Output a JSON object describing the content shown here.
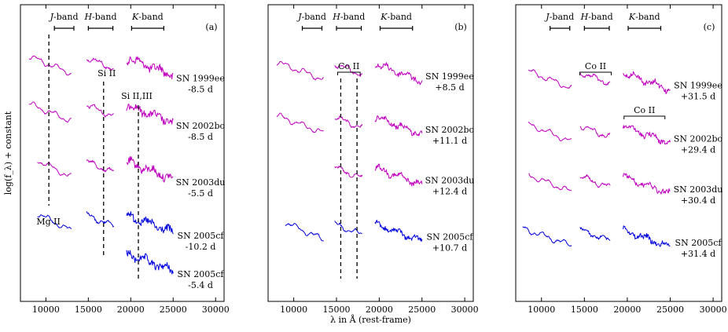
{
  "y_axis_label": "log(f_λ) + constant",
  "x_axis_label": "λ in Å (rest-frame)",
  "colors": {
    "optical": "#bf00bf",
    "blue": "#0000dd",
    "axis": "#000000"
  },
  "chart_data": [
    {
      "type": "line",
      "panel_label": "(a)",
      "xlim": [
        7000,
        31000
      ],
      "xticks": [
        10000,
        15000,
        20000,
        25000,
        30000
      ],
      "bands": [
        {
          "label": "J-band",
          "range": [
            11000,
            13300
          ]
        },
        {
          "label": "H-band",
          "range": [
            15000,
            17900
          ]
        },
        {
          "label": "K-band",
          "range": [
            20100,
            23900
          ]
        }
      ],
      "line_markers": [
        {
          "label": "",
          "x": 10350
        },
        {
          "label": "Si II",
          "x": 16800
        },
        {
          "label": "Si II,III",
          "x": 20900
        },
        {
          "label": "Mg II",
          "x": 10300
        }
      ],
      "series": [
        {
          "name": "SN 1999ee",
          "phase": "-8.5 d",
          "color": "magenta",
          "segments": [
            [
              8000,
              13000
            ],
            [
              14800,
              18000
            ],
            [
              19500,
              25000
            ]
          ],
          "level": 0.2
        },
        {
          "name": "SN 2002bo",
          "phase": "-8.5 d",
          "color": "magenta",
          "segments": [
            [
              8000,
              13000
            ],
            [
              14800,
              18000
            ],
            [
              19500,
              25000
            ]
          ],
          "level": 0.36
        },
        {
          "name": "SN 2003du",
          "phase": "-5.5 d",
          "color": "magenta",
          "segments": [
            [
              9000,
              13000
            ],
            [
              14800,
              18000
            ],
            [
              19500,
              25000
            ]
          ],
          "level": 0.55
        },
        {
          "name": "SN 2005cf",
          "phase": "-10.2 d",
          "color": "blue",
          "segments": [
            [
              9000,
              13000
            ],
            [
              14800,
              18000
            ],
            [
              19500,
              25000
            ]
          ],
          "level": 0.73
        },
        {
          "name": "SN 2005cf",
          "phase": "-5.4 d",
          "color": "blue",
          "segments": [
            [
              19500,
              25000
            ]
          ],
          "level": 0.86
        }
      ]
    },
    {
      "type": "line",
      "panel_label": "(b)",
      "xlim": [
        7000,
        31000
      ],
      "xticks": [
        10000,
        15000,
        20000,
        25000,
        30000
      ],
      "bands": [
        {
          "label": "J-band",
          "range": [
            11000,
            13300
          ]
        },
        {
          "label": "H-band",
          "range": [
            15000,
            17900
          ]
        },
        {
          "label": "K-band",
          "range": [
            20100,
            23900
          ]
        }
      ],
      "line_markers": [
        {
          "label": "Co II",
          "x": 15500
        },
        {
          "label": "",
          "x": 17400
        }
      ],
      "series": [
        {
          "name": "SN 1999ee",
          "phase": "+8.5 d",
          "color": "magenta",
          "segments": [
            [
              8000,
              13500
            ],
            [
              14800,
              18000
            ],
            [
              19500,
              25000
            ]
          ],
          "level": 0.22
        },
        {
          "name": "SN 2002bo",
          "phase": "+11.1 d",
          "color": "magenta",
          "segments": [
            [
              8000,
              13500
            ],
            [
              14800,
              18000
            ],
            [
              19500,
              25000
            ]
          ],
          "level": 0.4
        },
        {
          "name": "SN 2003du",
          "phase": "+12.4 d",
          "color": "magenta",
          "segments": [
            [
              14800,
              18000
            ],
            [
              19500,
              25000
            ]
          ],
          "level": 0.57
        },
        {
          "name": "SN 2005cf",
          "phase": "+10.7 d",
          "color": "blue",
          "segments": [
            [
              9000,
              13500
            ],
            [
              14800,
              18000
            ],
            [
              19500,
              25000
            ]
          ],
          "level": 0.76
        }
      ]
    },
    {
      "type": "line",
      "panel_label": "(c)",
      "xlim": [
        7000,
        31000
      ],
      "xticks": [
        10000,
        15000,
        20000,
        25000,
        30000
      ],
      "bands": [
        {
          "label": "J-band",
          "range": [
            11000,
            13300
          ]
        },
        {
          "label": "H-band",
          "range": [
            15000,
            17900
          ]
        },
        {
          "label": "K-band",
          "range": [
            20100,
            23900
          ]
        }
      ],
      "line_markers": [
        {
          "label": "Co II",
          "x": 16300
        },
        {
          "label": "Co II",
          "x": 22000
        }
      ],
      "series": [
        {
          "name": "SN 1999ee",
          "phase": "+31.5 d",
          "color": "magenta",
          "segments": [
            [
              8500,
              13500
            ],
            [
              14500,
              18000
            ],
            [
              19500,
              25000
            ]
          ],
          "level": 0.25
        },
        {
          "name": "SN 2002bo",
          "phase": "+29.4 d",
          "color": "magenta",
          "segments": [
            [
              8500,
              13500
            ],
            [
              14500,
              18000
            ],
            [
              19500,
              25000
            ]
          ],
          "level": 0.43
        },
        {
          "name": "SN 2003du",
          "phase": "+30.4 d",
          "color": "magenta",
          "segments": [
            [
              8500,
              13500
            ],
            [
              14500,
              18000
            ],
            [
              19500,
              25000
            ]
          ],
          "level": 0.6
        },
        {
          "name": "SN 2005cf",
          "phase": "+31.4 d",
          "color": "blue",
          "segments": [
            [
              7800,
              13500
            ],
            [
              14500,
              18000
            ],
            [
              19500,
              25000
            ]
          ],
          "level": 0.78
        }
      ]
    }
  ]
}
